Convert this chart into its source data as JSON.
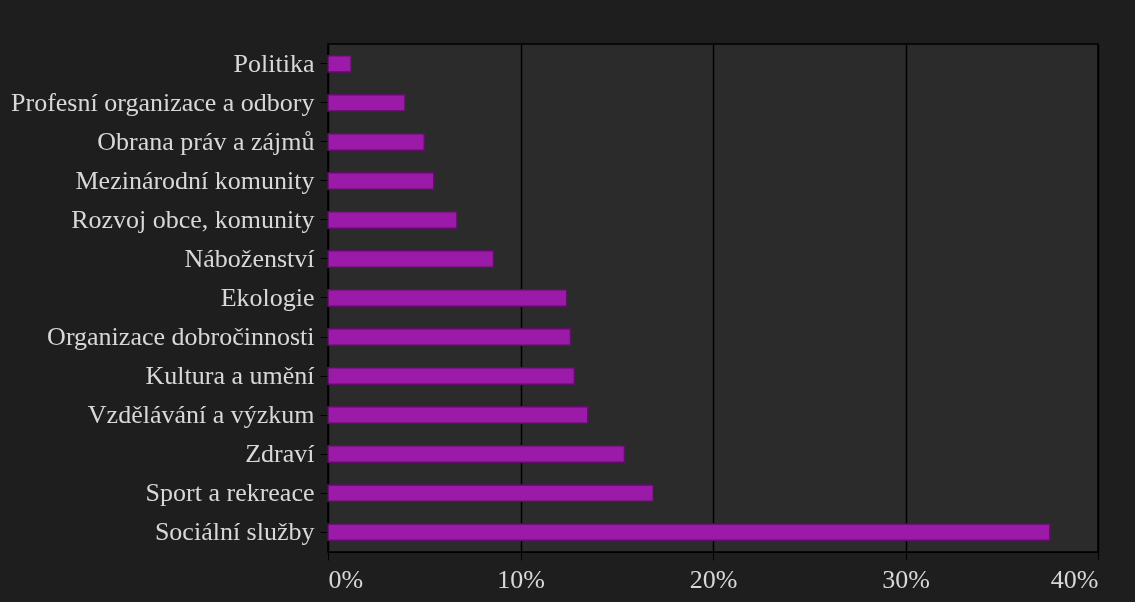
{
  "chart_data": {
    "type": "bar",
    "orientation": "horizontal",
    "categories": [
      "Politika",
      "Profesní organizace a odbory",
      "Obrana práv a zájmů",
      "Mezinárodní komunity",
      "Rozvoj obce, komunity",
      "Náboženství",
      "Ekologie",
      "Organizace dobročinnosti",
      "Kultura a umění",
      "Vzdělávání a výzkum",
      "Zdraví",
      "Sport a rekreace",
      "Sociální služby"
    ],
    "values": [
      1.2,
      4.0,
      5.0,
      5.5,
      6.7,
      8.6,
      12.4,
      12.6,
      12.8,
      13.5,
      15.4,
      16.9,
      37.5
    ],
    "color": "#9c1aa8",
    "xlim": [
      0,
      40
    ],
    "xticks": [
      {
        "value": 0,
        "label": "0%"
      },
      {
        "value": 10,
        "label": "10%"
      },
      {
        "value": 20,
        "label": "20%"
      },
      {
        "value": 30,
        "label": "30%"
      },
      {
        "value": 40,
        "label": "40%"
      }
    ],
    "grid": "x"
  }
}
